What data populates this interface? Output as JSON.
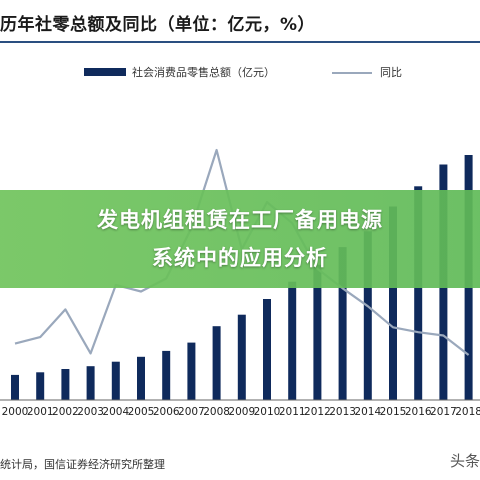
{
  "title": "历年社零总额及同比（单位：亿元，%）",
  "banner": {
    "line1": "发电机组租赁在工厂备用电源",
    "line2": "系统中的应用分析"
  },
  "source": "统计局，国信证券经济研究所整理",
  "watermark": "头条",
  "colors": {
    "bar": "#0f2a5c",
    "line": "#9aa8bc",
    "banner": "#6cc05a"
  },
  "chart_data": {
    "type": "bar+line",
    "categories": [
      "2000",
      "2001",
      "2002",
      "2003",
      "2004",
      "2005",
      "2006",
      "2007",
      "2008",
      "2009",
      "2010",
      "2011",
      "2012",
      "2013",
      "2014",
      "2015",
      "2016",
      "2017",
      "2018"
    ],
    "series": [
      {
        "name": "社会消费品零售总额（亿元）",
        "type": "bar",
        "values": [
          39106,
          43055,
          48136,
          52516,
          59501,
          67177,
          76410,
          89210,
          114830,
          132678,
          156998,
          183919,
          210307,
          237810,
          262394,
          300931,
          332316,
          366262,
          380987
        ]
      },
      {
        "name": "同比",
        "type": "line",
        "values": [
          9.7,
          10.1,
          11.8,
          9.1,
          13.3,
          12.9,
          13.7,
          16.8,
          21.6,
          15.5,
          18.4,
          17.1,
          14.3,
          13.1,
          12.0,
          10.7,
          10.4,
          10.2,
          9.0
        ]
      }
    ],
    "legend_position": "top",
    "grid": false
  }
}
